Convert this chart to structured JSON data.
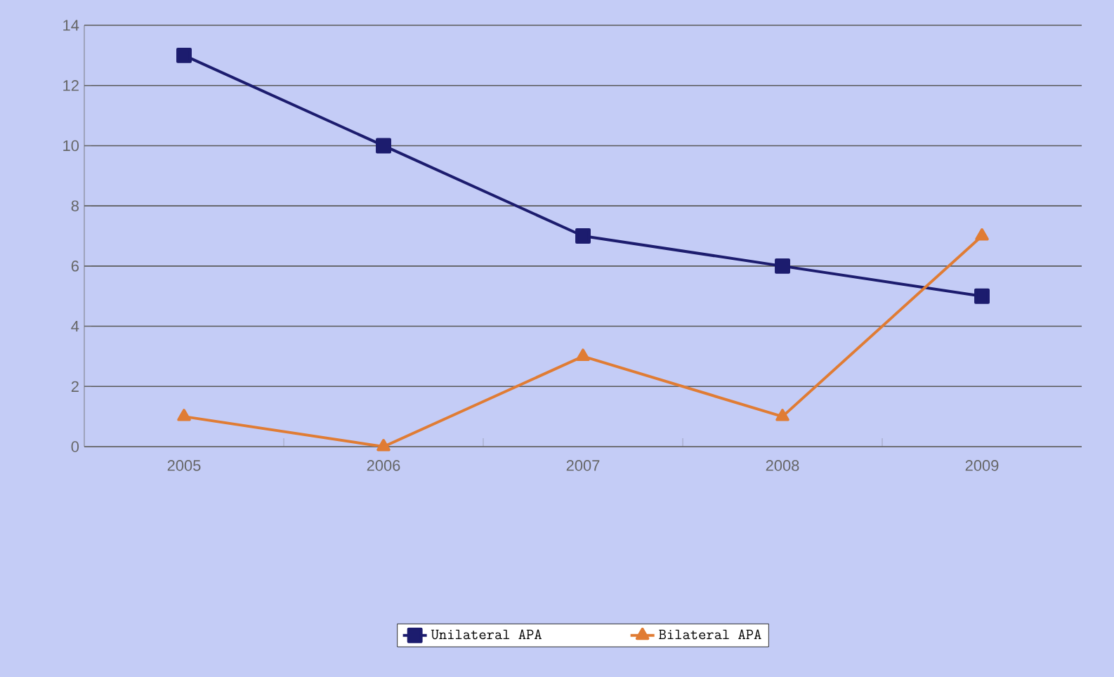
{
  "chart_data": {
    "type": "line",
    "categories": [
      "2005",
      "2006",
      "2007",
      "2008",
      "2009"
    ],
    "series": [
      {
        "name": "Unilateral APA",
        "color": "#1c1c6e",
        "marker": "square",
        "values": [
          13,
          10,
          7,
          6,
          5
        ]
      },
      {
        "name": "Bilateral APA",
        "color": "#e07c34",
        "marker": "triangle",
        "values": [
          1,
          0,
          3,
          1,
          7
        ]
      }
    ],
    "ylim": [
      0,
      14
    ],
    "yticks": [
      0,
      2,
      4,
      6,
      8,
      10,
      12,
      14
    ],
    "grid": "y",
    "legend": "bottom"
  }
}
